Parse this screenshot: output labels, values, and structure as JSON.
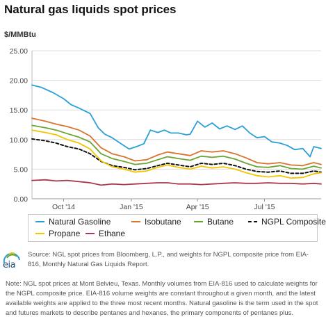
{
  "title": "Natural gas liquids spot prices",
  "unit_label": "$/MMBtu",
  "source": "Source: NGL spot prices from Bloomberg, L.P., and weights for NGPL composite price from EIA-816, Monthly Natural Gas Liquids Report.",
  "note": "Note: NGL spot prices at Mont Belvieu, Texas. Monthly volumes from EIA-816 used to calculate weights for the NGPL composite price. EIA-816 volume weights are constant throughout a given month, and the latest available weights are applied to the three most recent months. Natural gasoline is the term used in the spot and futures markets to describe pentanes and hexanes, the primary components of pentanes plus.",
  "logo_text": "eia",
  "colors": {
    "natural_gasoline": "#2a9fd8",
    "isobutane": "#d8742e",
    "butane": "#6aa532",
    "ngpl_composite": "#111111",
    "propane": "#f5c400",
    "ethane": "#a83a4c",
    "grid": "#dddddd"
  },
  "chart_data": {
    "type": "line",
    "x_domain": [
      "2014-09-02",
      "2015-09-30"
    ],
    "x_ticks": [
      {
        "date": "2014-10-15",
        "label": "Oct '14"
      },
      {
        "date": "2015-01-15",
        "label": "Jan '15"
      },
      {
        "date": "2015-04-15",
        "label": "Apr '15"
      },
      {
        "date": "2015-07-15",
        "label": "Jul '15"
      }
    ],
    "ylim": [
      0,
      25
    ],
    "yticks": [
      "0.00",
      "5.00",
      "10.00",
      "15.00",
      "20.00",
      "25.00"
    ],
    "ylabel": "$/MMBtu",
    "grid": true,
    "legend_position": "bottom",
    "series": [
      {
        "name": "Natural Gasoline",
        "key": "natural_gasoline",
        "style": "solid",
        "points": [
          [
            "2014-09-02",
            19.2
          ],
          [
            "2014-09-15",
            18.8
          ],
          [
            "2014-10-01",
            17.9
          ],
          [
            "2014-10-15",
            16.9
          ],
          [
            "2014-10-25",
            15.9
          ],
          [
            "2014-11-05",
            15.3
          ],
          [
            "2014-11-20",
            14.4
          ],
          [
            "2014-12-01",
            12.0
          ],
          [
            "2014-12-10",
            10.9
          ],
          [
            "2014-12-20",
            10.3
          ],
          [
            "2015-01-01",
            9.3
          ],
          [
            "2015-01-12",
            8.4
          ],
          [
            "2015-01-22",
            8.8
          ],
          [
            "2015-02-01",
            9.3
          ],
          [
            "2015-02-10",
            11.6
          ],
          [
            "2015-02-20",
            11.2
          ],
          [
            "2015-03-01",
            11.6
          ],
          [
            "2015-03-10",
            11.1
          ],
          [
            "2015-03-20",
            11.1
          ],
          [
            "2015-03-31",
            10.8
          ],
          [
            "2015-04-05",
            10.9
          ],
          [
            "2015-04-15",
            13.1
          ],
          [
            "2015-04-25",
            12.1
          ],
          [
            "2015-05-05",
            12.8
          ],
          [
            "2015-05-15",
            11.8
          ],
          [
            "2015-05-25",
            12.3
          ],
          [
            "2015-06-05",
            11.7
          ],
          [
            "2015-06-15",
            12.3
          ],
          [
            "2015-06-25",
            11.1
          ],
          [
            "2015-07-05",
            10.3
          ],
          [
            "2015-07-15",
            10.5
          ],
          [
            "2015-07-25",
            9.6
          ],
          [
            "2015-08-05",
            9.4
          ],
          [
            "2015-08-15",
            9.0
          ],
          [
            "2015-08-25",
            8.3
          ],
          [
            "2015-09-05",
            8.5
          ],
          [
            "2015-09-15",
            7.1
          ],
          [
            "2015-09-20",
            8.8
          ],
          [
            "2015-09-30",
            8.5
          ]
        ]
      },
      {
        "name": "Isobutane",
        "key": "isobutane",
        "style": "solid",
        "points": [
          [
            "2014-09-02",
            13.6
          ],
          [
            "2014-09-20",
            13.1
          ],
          [
            "2014-10-05",
            12.6
          ],
          [
            "2014-10-20",
            12.2
          ],
          [
            "2014-11-05",
            11.6
          ],
          [
            "2014-11-20",
            10.6
          ],
          [
            "2014-12-05",
            8.6
          ],
          [
            "2014-12-20",
            7.6
          ],
          [
            "2015-01-05",
            7.1
          ],
          [
            "2015-01-20",
            6.4
          ],
          [
            "2015-02-05",
            6.6
          ],
          [
            "2015-02-20",
            7.4
          ],
          [
            "2015-03-05",
            7.9
          ],
          [
            "2015-03-20",
            7.6
          ],
          [
            "2015-04-05",
            7.3
          ],
          [
            "2015-04-20",
            8.1
          ],
          [
            "2015-05-05",
            7.9
          ],
          [
            "2015-05-20",
            8.1
          ],
          [
            "2015-06-05",
            7.6
          ],
          [
            "2015-06-20",
            6.9
          ],
          [
            "2015-07-05",
            6.1
          ],
          [
            "2015-07-20",
            5.9
          ],
          [
            "2015-08-05",
            6.1
          ],
          [
            "2015-08-20",
            5.7
          ],
          [
            "2015-09-05",
            5.6
          ],
          [
            "2015-09-20",
            6.1
          ],
          [
            "2015-09-30",
            5.8
          ]
        ]
      },
      {
        "name": "Butane",
        "key": "butane",
        "style": "solid",
        "points": [
          [
            "2014-09-02",
            12.4
          ],
          [
            "2014-09-20",
            12.0
          ],
          [
            "2014-10-05",
            11.6
          ],
          [
            "2014-10-20",
            11.0
          ],
          [
            "2014-11-05",
            10.4
          ],
          [
            "2014-11-20",
            9.6
          ],
          [
            "2014-12-05",
            7.6
          ],
          [
            "2014-12-20",
            6.8
          ],
          [
            "2015-01-05",
            6.3
          ],
          [
            "2015-01-20",
            5.8
          ],
          [
            "2015-02-05",
            6.0
          ],
          [
            "2015-02-20",
            6.6
          ],
          [
            "2015-03-05",
            7.1
          ],
          [
            "2015-03-20",
            6.8
          ],
          [
            "2015-04-05",
            6.5
          ],
          [
            "2015-04-20",
            7.2
          ],
          [
            "2015-05-05",
            7.0
          ],
          [
            "2015-05-20",
            7.2
          ],
          [
            "2015-06-05",
            6.7
          ],
          [
            "2015-06-20",
            6.0
          ],
          [
            "2015-07-05",
            5.4
          ],
          [
            "2015-07-20",
            5.3
          ],
          [
            "2015-08-05",
            5.6
          ],
          [
            "2015-08-20",
            5.1
          ],
          [
            "2015-09-05",
            5.0
          ],
          [
            "2015-09-20",
            5.5
          ],
          [
            "2015-09-30",
            5.2
          ]
        ]
      },
      {
        "name": "NGPL Composite",
        "key": "ngpl_composite",
        "style": "dashed",
        "points": [
          [
            "2014-09-02",
            10.1
          ],
          [
            "2014-09-20",
            9.8
          ],
          [
            "2014-10-05",
            9.4
          ],
          [
            "2014-10-20",
            8.8
          ],
          [
            "2014-11-05",
            8.4
          ],
          [
            "2014-11-20",
            7.6
          ],
          [
            "2014-12-05",
            6.3
          ],
          [
            "2014-12-20",
            5.6
          ],
          [
            "2015-01-05",
            5.3
          ],
          [
            "2015-01-20",
            4.9
          ],
          [
            "2015-02-05",
            5.1
          ],
          [
            "2015-02-20",
            5.6
          ],
          [
            "2015-03-05",
            6.0
          ],
          [
            "2015-03-20",
            5.7
          ],
          [
            "2015-04-05",
            5.4
          ],
          [
            "2015-04-20",
            6.0
          ],
          [
            "2015-05-05",
            5.8
          ],
          [
            "2015-05-20",
            6.0
          ],
          [
            "2015-06-05",
            5.6
          ],
          [
            "2015-06-20",
            5.0
          ],
          [
            "2015-07-05",
            4.6
          ],
          [
            "2015-07-20",
            4.5
          ],
          [
            "2015-08-05",
            4.7
          ],
          [
            "2015-08-20",
            4.3
          ],
          [
            "2015-09-05",
            4.3
          ],
          [
            "2015-09-20",
            4.7
          ],
          [
            "2015-09-30",
            4.5
          ]
        ]
      },
      {
        "name": "Propane",
        "key": "propane",
        "style": "solid",
        "points": [
          [
            "2014-09-02",
            11.6
          ],
          [
            "2014-09-20",
            11.2
          ],
          [
            "2014-10-05",
            10.8
          ],
          [
            "2014-10-20",
            10.0
          ],
          [
            "2014-11-05",
            9.4
          ],
          [
            "2014-11-20",
            8.4
          ],
          [
            "2014-12-05",
            6.4
          ],
          [
            "2014-12-20",
            5.4
          ],
          [
            "2015-01-05",
            5.0
          ],
          [
            "2015-01-20",
            4.5
          ],
          [
            "2015-02-05",
            4.7
          ],
          [
            "2015-02-20",
            5.3
          ],
          [
            "2015-03-05",
            5.7
          ],
          [
            "2015-03-20",
            5.3
          ],
          [
            "2015-04-05",
            5.0
          ],
          [
            "2015-04-20",
            5.5
          ],
          [
            "2015-05-05",
            5.2
          ],
          [
            "2015-05-20",
            5.4
          ],
          [
            "2015-06-05",
            5.0
          ],
          [
            "2015-06-20",
            4.4
          ],
          [
            "2015-07-05",
            3.9
          ],
          [
            "2015-07-20",
            3.7
          ],
          [
            "2015-08-05",
            3.9
          ],
          [
            "2015-08-20",
            3.5
          ],
          [
            "2015-09-05",
            3.6
          ],
          [
            "2015-09-20",
            4.2
          ],
          [
            "2015-09-30",
            4.4
          ]
        ]
      },
      {
        "name": "Ethane",
        "key": "ethane",
        "style": "solid",
        "points": [
          [
            "2014-09-02",
            3.1
          ],
          [
            "2014-09-20",
            3.2
          ],
          [
            "2014-10-05",
            3.0
          ],
          [
            "2014-10-20",
            3.1
          ],
          [
            "2014-11-05",
            2.9
          ],
          [
            "2014-11-20",
            2.7
          ],
          [
            "2014-12-05",
            2.3
          ],
          [
            "2014-12-20",
            2.5
          ],
          [
            "2015-01-05",
            2.4
          ],
          [
            "2015-01-20",
            2.5
          ],
          [
            "2015-02-05",
            2.6
          ],
          [
            "2015-02-20",
            2.7
          ],
          [
            "2015-03-05",
            2.7
          ],
          [
            "2015-03-20",
            2.5
          ],
          [
            "2015-04-05",
            2.5
          ],
          [
            "2015-04-20",
            2.4
          ],
          [
            "2015-05-05",
            2.5
          ],
          [
            "2015-05-20",
            2.6
          ],
          [
            "2015-06-05",
            2.7
          ],
          [
            "2015-06-20",
            2.6
          ],
          [
            "2015-07-05",
            2.6
          ],
          [
            "2015-07-20",
            2.7
          ],
          [
            "2015-08-05",
            2.6
          ],
          [
            "2015-08-20",
            2.6
          ],
          [
            "2015-09-05",
            2.5
          ],
          [
            "2015-09-20",
            2.6
          ],
          [
            "2015-09-30",
            2.5
          ]
        ]
      }
    ]
  }
}
